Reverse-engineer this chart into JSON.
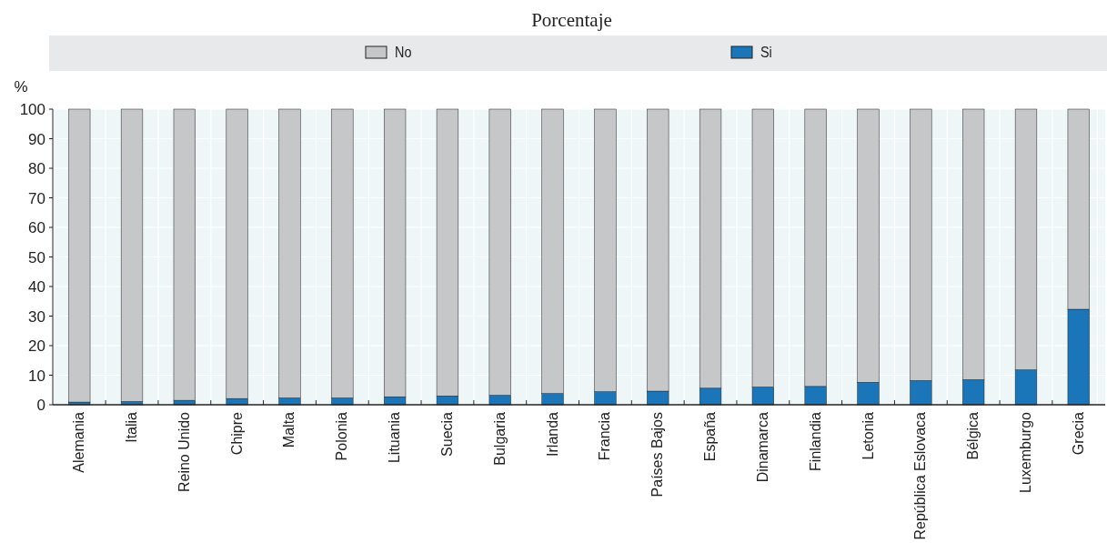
{
  "chart_data": {
    "type": "bar",
    "title": "Porcentaje",
    "ylabel": "%",
    "stacked": true,
    "legend": "top",
    "grid": true,
    "categories": [
      "Alemania",
      "Italia",
      "Reino Unido",
      "Chipre",
      "Malta",
      "Polonia",
      "Lituania",
      "Suecia",
      "Bulgaria",
      "Irlanda",
      "Francia",
      "Países Bajos",
      "España",
      "Dinamarca",
      "Finlandia",
      "Letonia",
      "República Eslovaca",
      "Bélgica",
      "Luxemburgo",
      "Grecia"
    ],
    "series": [
      {
        "name": "Si",
        "color": "#1a76b9",
        "values": [
          0.9,
          1.1,
          1.5,
          2.1,
          2.3,
          2.3,
          2.7,
          3.0,
          3.2,
          3.8,
          4.4,
          4.6,
          5.6,
          6.0,
          6.2,
          7.6,
          8.2,
          8.5,
          11.8,
          32.3
        ]
      },
      {
        "name": "No",
        "color": "#c6c7c9",
        "values": [
          99.1,
          98.9,
          98.5,
          97.9,
          97.7,
          97.7,
          97.3,
          97.0,
          96.8,
          96.2,
          95.6,
          95.4,
          94.4,
          94.0,
          93.8,
          92.4,
          91.8,
          91.5,
          88.2,
          67.7
        ]
      }
    ],
    "ylim": [
      0,
      100
    ],
    "yticks": [
      0,
      10,
      20,
      30,
      40,
      50,
      60,
      70,
      80,
      90,
      100
    ]
  }
}
